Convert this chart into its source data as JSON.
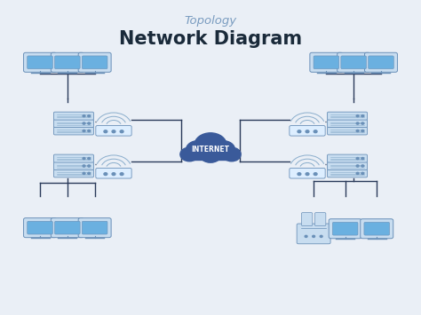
{
  "title": "Network Diagram",
  "subtitle": "Topology",
  "bg_color": "#eaeff6",
  "title_color": "#1a2a3a",
  "subtitle_color": "#7a9cc0",
  "line_color": "#2a3a5a",
  "monitor_screen_fill": "#6ab0e0",
  "monitor_body_fill": "#c8ddf0",
  "monitor_outline": "#6a90b8",
  "server_fill": "#c8ddf0",
  "server_stripe": "#8aadcc",
  "server_outline": "#6a90b8",
  "router_fill": "#ddeeff",
  "router_outline": "#6a90b8",
  "wifi_color": "#8aadcc",
  "cloud_fill": "#3a5a9a",
  "cloud_outline": "#2a4a8a",
  "cloud_text": "#ffffff",
  "dash_color": "#4a6a9a",
  "internet_label": "INTERNET",
  "lw": 1.0
}
